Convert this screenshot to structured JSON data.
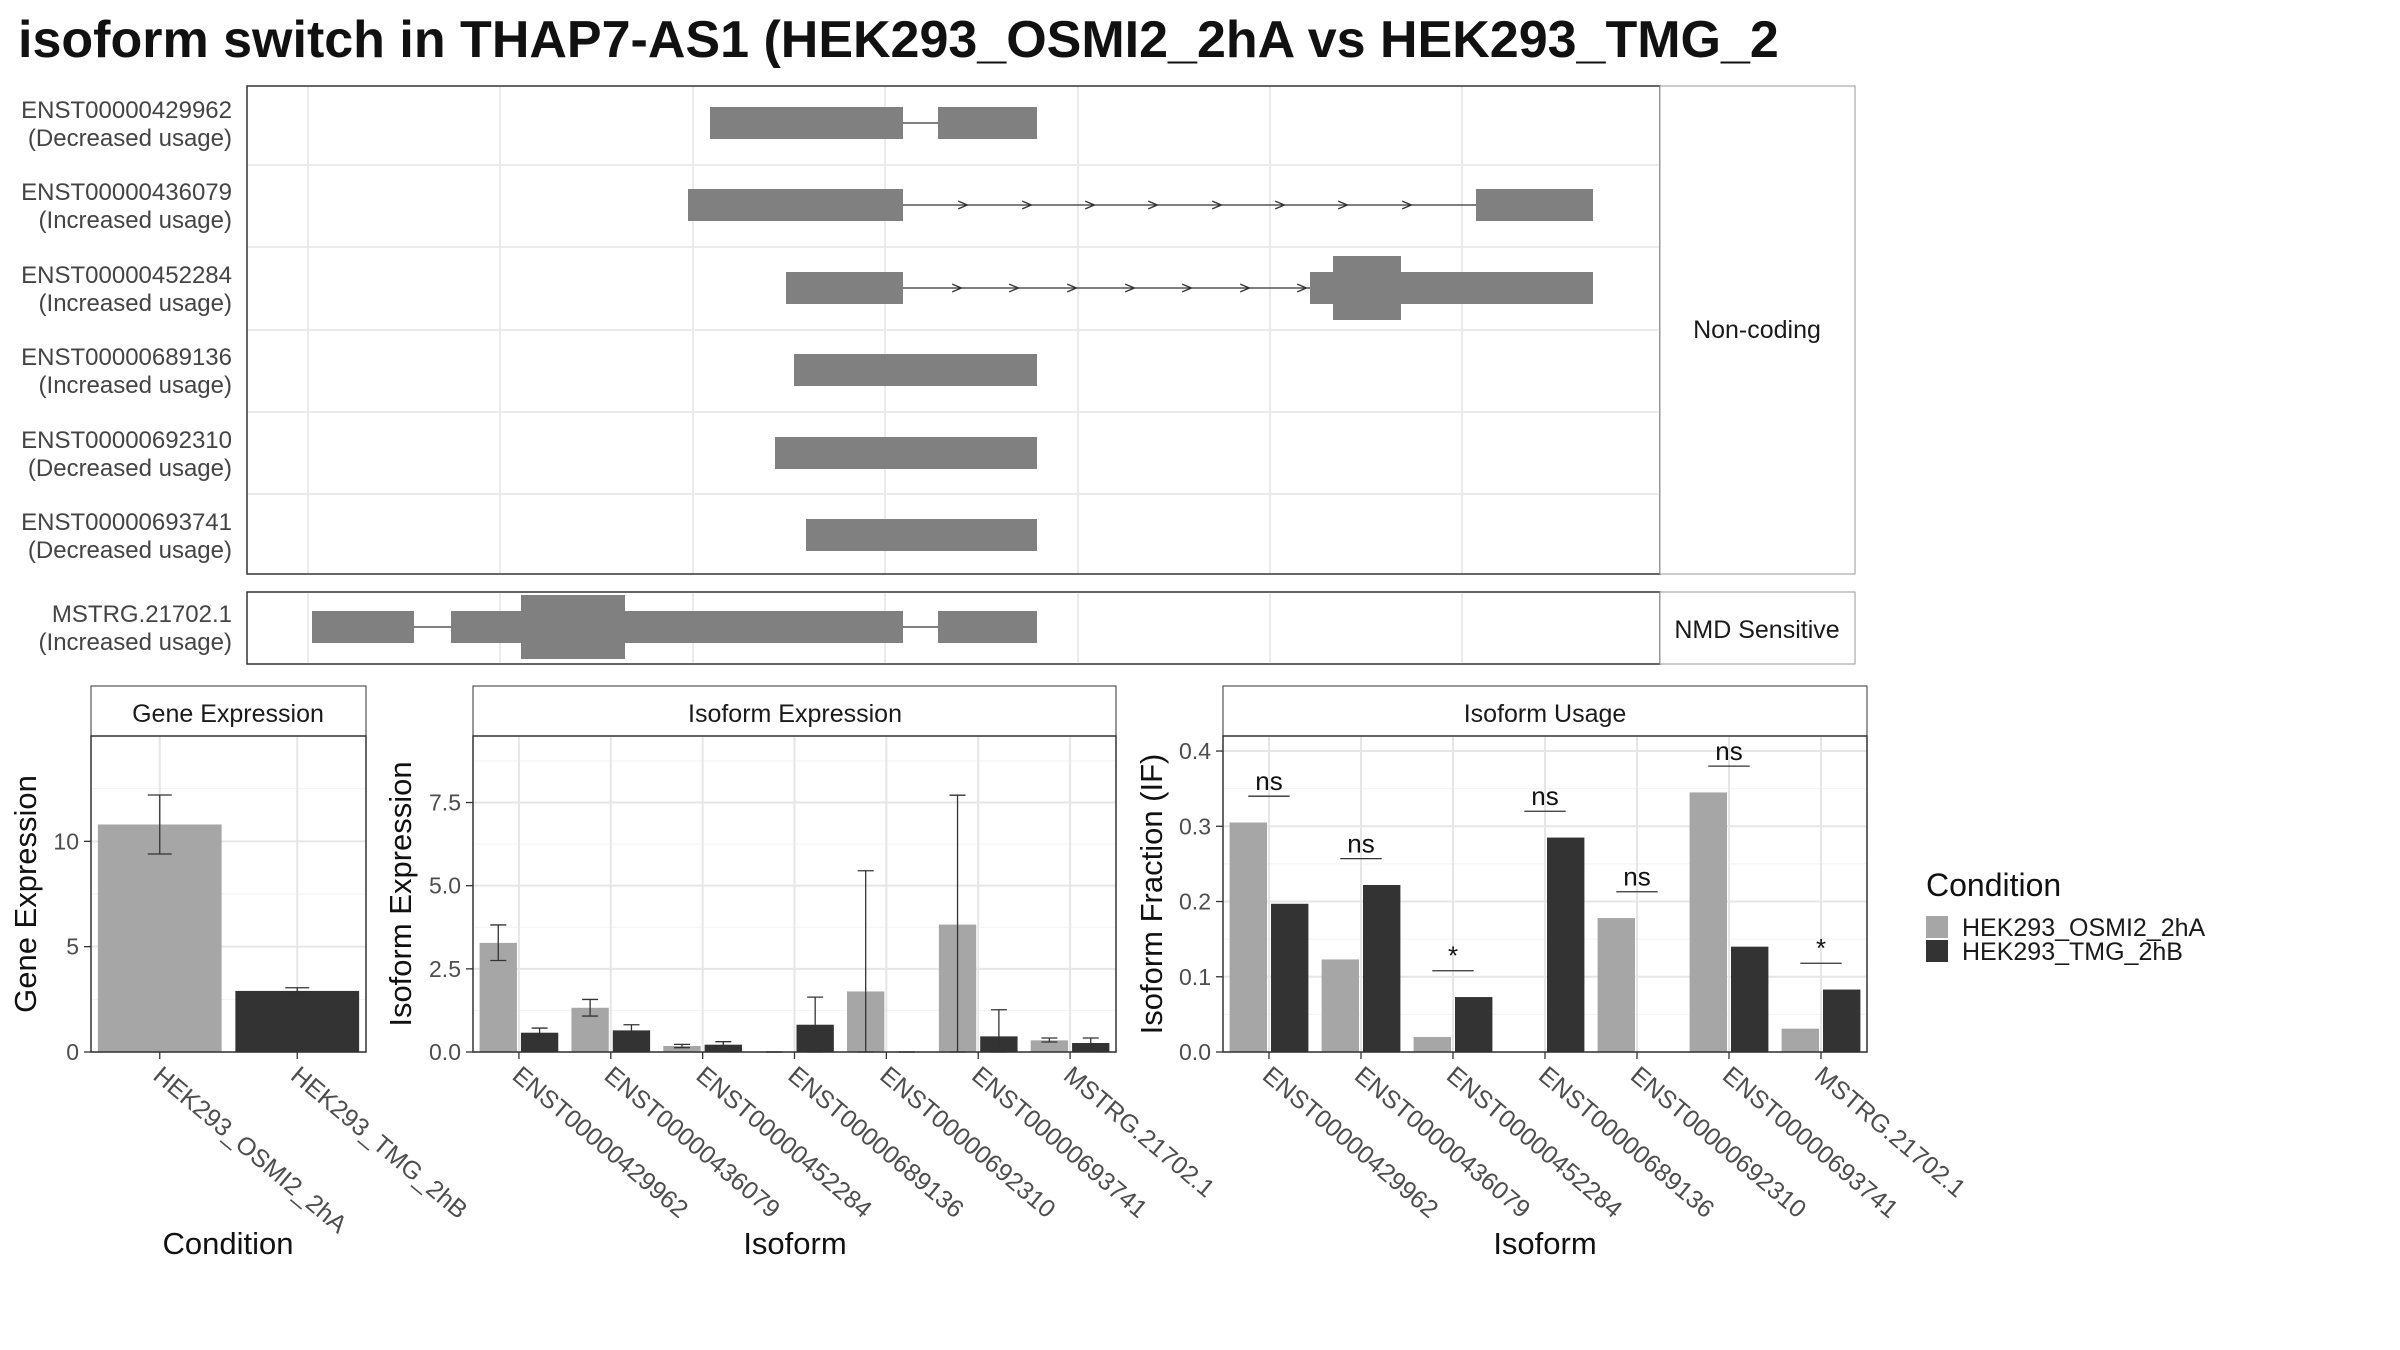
{
  "title": "isoform switch in THAP7-AS1 (HEK293_OSMI2_2hA vs HEK293_TMG_2",
  "structure": {
    "transcripts": [
      {
        "id": "ENST00000429962",
        "usage": "(Decreased usage)"
      },
      {
        "id": "ENST00000436079",
        "usage": "(Increased usage)"
      },
      {
        "id": "ENST00000452284",
        "usage": "(Increased usage)"
      },
      {
        "id": "ENST00000689136",
        "usage": "(Increased usage)"
      },
      {
        "id": "ENST00000692310",
        "usage": "(Decreased usage)"
      },
      {
        "id": "ENST00000693741",
        "usage": "(Decreased usage)"
      },
      {
        "id": "MSTRG.21702.1",
        "usage": "(Increased usage)"
      }
    ],
    "facet_labels": {
      "noncoding": "Non-coding",
      "nmd": "NMD Sensitive"
    }
  },
  "colors": {
    "cond_a": "#a6a6a6",
    "cond_b": "#333333",
    "exon": "#808080"
  },
  "chart_data": [
    {
      "type": "bar",
      "title": "Gene Expression",
      "xlabel": "Condition",
      "ylabel": "Gene Expression",
      "ylim": [
        0,
        15
      ],
      "yticks": [
        0,
        5,
        10
      ],
      "categories": [
        "HEK293_OSMI2_2hA",
        "HEK293_TMG_2hB"
      ],
      "values": [
        10.8,
        2.9
      ],
      "errors": [
        [
          9.4,
          12.2
        ],
        [
          2.75,
          3.05
        ]
      ]
    },
    {
      "type": "bar",
      "title": "Isoform Expression",
      "xlabel": "Isoform",
      "ylabel": "Isoform Expression",
      "ylim": [
        0,
        9.5
      ],
      "yticks": [
        "0.0",
        "2.5",
        "5.0",
        "7.5"
      ],
      "categories": [
        "ENST00000429962",
        "ENST00000436079",
        "ENST00000452284",
        "ENST00000689136",
        "ENST00000692310",
        "ENST00000693741",
        "MSTRG.21702.1"
      ],
      "series": [
        {
          "name": "HEK293_OSMI2_2hA",
          "values": [
            3.28,
            1.33,
            0.18,
            0.0,
            1.82,
            3.83,
            0.35
          ],
          "errors": [
            [
              2.75,
              3.82
            ],
            [
              1.08,
              1.58
            ],
            [
              0.13,
              0.23
            ],
            [
              0.0,
              0.0
            ],
            [
              0.0,
              5.45
            ],
            [
              0.0,
              7.72
            ],
            [
              0.3,
              0.42
            ]
          ]
        },
        {
          "name": "HEK293_TMG_2hB",
          "values": [
            0.58,
            0.65,
            0.22,
            0.82,
            0.0,
            0.47,
            0.27
          ],
          "errors": [
            [
              0.45,
              0.72
            ],
            [
              0.5,
              0.82
            ],
            [
              0.13,
              0.31
            ],
            [
              0.0,
              1.65
            ],
            [
              0.0,
              0.0
            ],
            [
              0.0,
              1.27
            ],
            [
              0.12,
              0.42
            ]
          ]
        }
      ]
    },
    {
      "type": "bar",
      "title": "Isoform Usage",
      "xlabel": "Isoform",
      "ylabel": "Isoform Fraction (IF)",
      "ylim": [
        0,
        0.42
      ],
      "yticks": [
        "0.0",
        "0.1",
        "0.2",
        "0.3",
        "0.4"
      ],
      "categories": [
        "ENST00000429962",
        "ENST00000436079",
        "ENST00000452284",
        "ENST00000689136",
        "ENST00000692310",
        "ENST00000693741",
        "MSTRG.21702.1"
      ],
      "series": [
        {
          "name": "HEK293_OSMI2_2hA",
          "values": [
            0.305,
            0.123,
            0.02,
            0.0,
            0.178,
            0.345,
            0.031
          ]
        },
        {
          "name": "HEK293_TMG_2hB",
          "values": [
            0.197,
            0.222,
            0.073,
            0.285,
            0.0,
            0.14,
            0.083
          ]
        }
      ],
      "significance": [
        "ns",
        "ns",
        "*",
        "ns",
        "ns",
        "ns",
        "*"
      ]
    }
  ],
  "legend": {
    "title": "Condition",
    "entries": [
      "HEK293_OSMI2_2hA",
      "HEK293_TMG_2hB"
    ]
  }
}
